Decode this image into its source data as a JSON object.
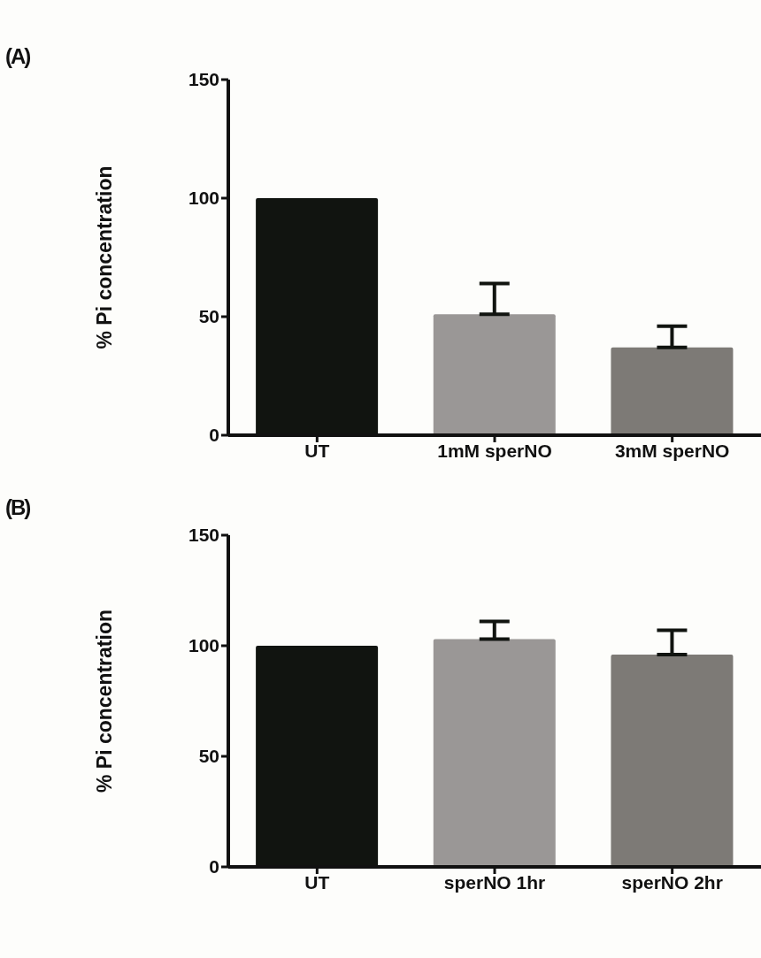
{
  "chart_data": [
    {
      "type": "bar",
      "annotations": [
        "(A)"
      ],
      "ylabel": "% Pi concentration",
      "categories": [
        "UT",
        "1mM sperNO",
        "3mM sperNO"
      ],
      "values": [
        100,
        51,
        37
      ],
      "colors": [
        "#111410",
        "#9a9796",
        "#7d7a76"
      ],
      "errors": [
        null,
        [
          51,
          64
        ],
        [
          37,
          46
        ]
      ],
      "ylim": [
        0,
        150
      ],
      "yticks": [
        0,
        50,
        100,
        150
      ],
      "grid": false,
      "legend": false
    },
    {
      "type": "bar",
      "annotations": [
        "(B)"
      ],
      "ylabel": "% Pi concentration",
      "categories": [
        "UT",
        "sperNO 1hr",
        "sperNO 2hr"
      ],
      "values": [
        100,
        103,
        96
      ],
      "colors": [
        "#111410",
        "#9a9796",
        "#7d7a76"
      ],
      "errors": [
        null,
        [
          103,
          111
        ],
        [
          96,
          107
        ]
      ],
      "ylim": [
        0,
        150
      ],
      "yticks": [
        0,
        50,
        100,
        150
      ],
      "grid": false,
      "legend": false
    }
  ]
}
